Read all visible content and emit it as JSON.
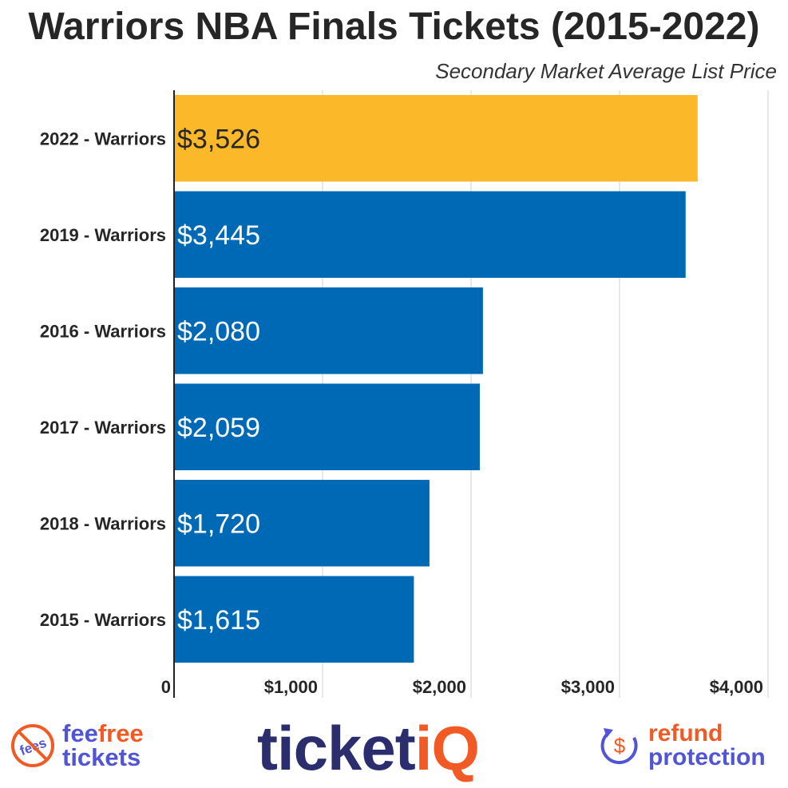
{
  "chart_data": {
    "type": "bar",
    "orientation": "horizontal",
    "title": "Warriors NBA Finals Tickets (2015-2022)",
    "subtitle": "Secondary Market Average List Price",
    "categories": [
      "2022 - Warriors",
      "2019 - Warriors",
      "2016 - Warriors",
      "2017 - Warriors",
      "2018 - Warriors",
      "2015 - Warriors"
    ],
    "values": [
      3526,
      3445,
      2080,
      2059,
      1720,
      1615
    ],
    "value_labels": [
      "$3,526",
      "$3,445",
      "$2,080",
      "$2,059",
      "$1,720",
      "$1,615"
    ],
    "bar_colors": [
      "#fbb829",
      "#0069b5",
      "#0069b5",
      "#0069b5",
      "#0069b5",
      "#0069b5"
    ],
    "label_colors": [
      "#262626",
      "#ffffff",
      "#ffffff",
      "#ffffff",
      "#ffffff",
      "#ffffff"
    ],
    "xlim": [
      0,
      4000
    ],
    "x_ticks": [
      0,
      1000,
      2000,
      3000,
      4000
    ],
    "x_tick_labels": [
      "0",
      "$1,000",
      "$2,000",
      "$3,000",
      "$4,000"
    ],
    "grid": true
  },
  "footer": {
    "fee_free_line1_a": "fee",
    "fee_free_line1_b": "free",
    "fee_free_line2": "tickets",
    "fee_badge": "fees",
    "brand_main": "ticket",
    "brand_accent": "iQ",
    "refund_line1": "refund",
    "refund_line2": "protection",
    "refund_symbol": "$"
  },
  "colors": {
    "highlight": "#fbb829",
    "primary": "#0069b5",
    "accent_orange": "#f15a24",
    "accent_purple": "#5054d6",
    "brand_navy": "#2b2d6e"
  }
}
